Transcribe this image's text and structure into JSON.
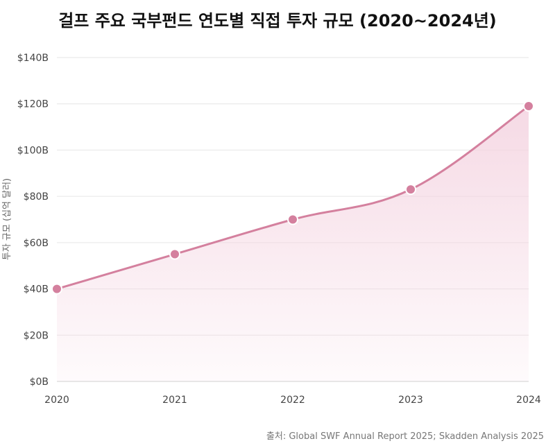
{
  "chart_data": {
    "type": "area",
    "title": "걸프 주요 국부펀드 연도별 직접 투자 규모 (2020~2024년)",
    "xlabel": "",
    "ylabel": "투자 규모 (십억 달러)",
    "x": [
      "2020",
      "2021",
      "2022",
      "2023",
      "2024"
    ],
    "series": [
      {
        "values": [
          40,
          55,
          70,
          83,
          119
        ]
      }
    ],
    "ylim": [
      0,
      140
    ],
    "yticks": [
      0,
      20,
      40,
      60,
      80,
      100,
      120,
      140
    ],
    "ytick_labels": [
      "$0B",
      "$20B",
      "$40B",
      "$60B",
      "$80B",
      "$100B",
      "$120B",
      "$140B"
    ],
    "grid": true,
    "legend": "none",
    "line_color": "#d4809e",
    "fill_color": "#f4d3e0",
    "marker_color": "#d4809e",
    "source": "출처: Global SWF Annual Report 2025; Skadden Analysis 2025"
  }
}
